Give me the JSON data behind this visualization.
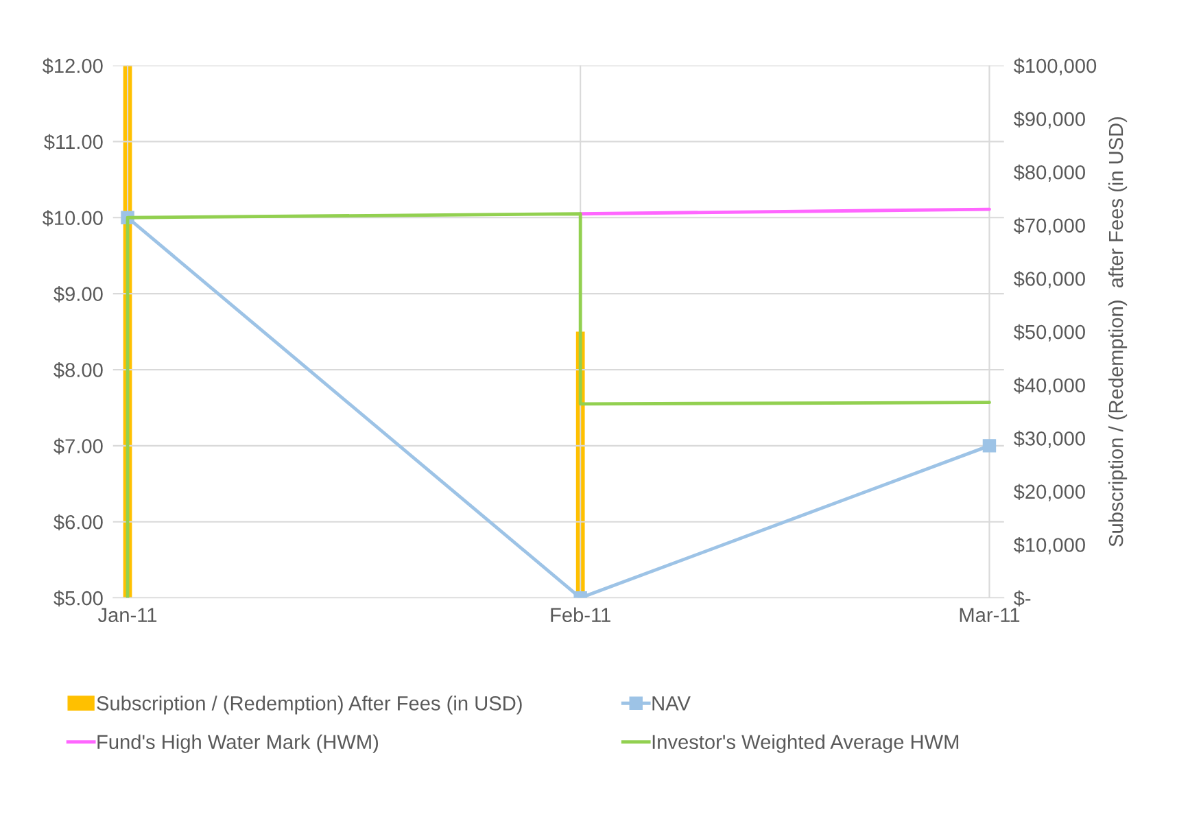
{
  "chart_data": {
    "type": "line",
    "xlim": [
      "2010-12-31",
      "2011-03-02"
    ],
    "xticks": [
      {
        "value": "2011-01-01",
        "label": "Jan-11"
      },
      {
        "value": "2011-02-01",
        "label": "Feb-11"
      },
      {
        "value": "2011-03-01",
        "label": "Mar-11"
      }
    ],
    "ylim": [
      5,
      12
    ],
    "yticks": [
      {
        "value": 5,
        "label": "$5.00"
      },
      {
        "value": 6,
        "label": "$6.00"
      },
      {
        "value": 7,
        "label": "$7.00"
      },
      {
        "value": 8,
        "label": "$8.00"
      },
      {
        "value": 9,
        "label": "$9.00"
      },
      {
        "value": 10,
        "label": "$10.00"
      },
      {
        "value": 11,
        "label": "$11.00"
      },
      {
        "value": 12,
        "label": "$12.00"
      }
    ],
    "y2lim": [
      0,
      100000
    ],
    "y2ticks": [
      {
        "value": 0,
        "label": "$-"
      },
      {
        "value": 10000,
        "label": "$10,000"
      },
      {
        "value": 20000,
        "label": "$20,000"
      },
      {
        "value": 30000,
        "label": "$30,000"
      },
      {
        "value": 40000,
        "label": "$40,000"
      },
      {
        "value": 50000,
        "label": "$50,000"
      },
      {
        "value": 60000,
        "label": "$60,000"
      },
      {
        "value": 70000,
        "label": "$70,000"
      },
      {
        "value": 80000,
        "label": "$80,000"
      },
      {
        "value": 90000,
        "label": "$90,000"
      },
      {
        "value": 100000,
        "label": "$100,000"
      }
    ],
    "y2label": "Subscription / (Redemption)  after Fees (in USD)",
    "grid": true,
    "legend": "bottom",
    "series": [
      {
        "name": "Subscription / (Redemption) After Fees (in USD)",
        "type": "bar",
        "axis": "y2",
        "color": "#ffc000",
        "x": [
          "2011-01-01",
          "2011-02-01"
        ],
        "values": [
          100000,
          50000
        ]
      },
      {
        "name": "NAV",
        "marker": "square",
        "color": "#9dc3e6",
        "x": [
          "2011-01-01",
          "2011-02-01",
          "2011-03-01"
        ],
        "values": [
          10.0,
          5.0,
          7.0
        ]
      },
      {
        "name": "Fund's High Water Mark (HWM)",
        "marker": "none",
        "color": "#ff66ff",
        "x": [
          "2011-02-01",
          "2011-03-01"
        ],
        "values": [
          10.05,
          10.11
        ]
      },
      {
        "name": "Investor's Weighted Average HWM",
        "marker": "none",
        "color": "#92d050",
        "x": [
          "2011-01-01",
          "2011-01-01",
          "2011-02-01",
          "2011-02-01",
          "2011-03-01"
        ],
        "values": [
          5.0,
          10.0,
          10.05,
          7.55,
          7.57
        ]
      }
    ]
  }
}
